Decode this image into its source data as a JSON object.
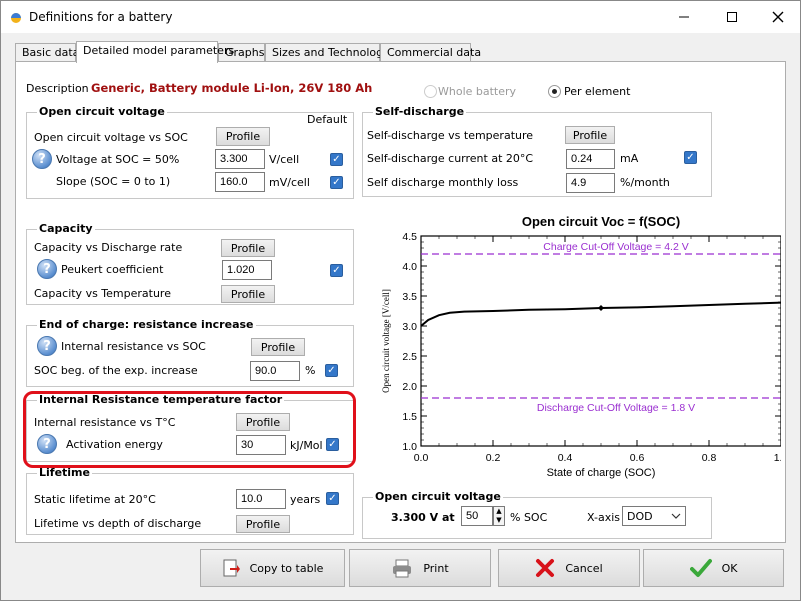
{
  "window": {
    "title": "Definitions for a battery",
    "minimize": "—",
    "maximize": "☐",
    "close": "✕"
  },
  "tabs": [
    {
      "label": "Basic data"
    },
    {
      "label": "Detailed model parameters"
    },
    {
      "label": "Graphs"
    },
    {
      "label": "Sizes and Technology"
    },
    {
      "label": "Commercial data"
    }
  ],
  "description": {
    "label": "Description",
    "value": "Generic,  Battery module Li-Ion, 26V 180 Ah"
  },
  "scope": {
    "whole_battery": "Whole battery",
    "per_element": "Per element",
    "selected": "per_element"
  },
  "ocv": {
    "title": "Open circuit voltage",
    "default_label": "Default",
    "vs_soc_label": "Open circuit voltage vs SOC",
    "profile": "Profile",
    "v_soc50_label": "Voltage at SOC = 50%",
    "v_soc50_value": "3.300",
    "v_soc50_unit": "V/cell",
    "slope_label": "Slope (SOC = 0 to 1)",
    "slope_value": "160.0",
    "slope_unit": "mV/cell"
  },
  "capacity": {
    "title": "Capacity",
    "vs_rate_label": "Capacity vs Discharge rate",
    "profile": "Profile",
    "peukert_label": "Peukert coefficient",
    "peukert_value": "1.020",
    "vs_temp_label": "Capacity vs Temperature"
  },
  "eoc": {
    "title": "End of charge: resistance increase",
    "ir_vs_soc_label": "Internal resistance vs SOC",
    "profile": "Profile",
    "soc_beg_label": "SOC beg. of the exp. increase",
    "soc_beg_value": "90.0",
    "soc_beg_unit": "%"
  },
  "irt": {
    "title": "Internal Resistance temperature factor",
    "ir_vs_t_label": "Internal resistance vs T°C",
    "profile": "Profile",
    "activation_label": "Activation energy",
    "activation_value": "30",
    "activation_unit": "kJ/Mol"
  },
  "lifetime": {
    "title": "Lifetime",
    "static_label": "Static lifetime at 20°C",
    "static_value": "10.0",
    "static_unit": "years",
    "vs_dod_label": "Lifetime vs depth of discharge",
    "profile": "Profile"
  },
  "selfdischarge": {
    "title": "Self-discharge",
    "vs_temp_label": "Self-discharge vs temperature",
    "profile": "Profile",
    "current_label": "Self-discharge current at 20°C",
    "current_value": "0.24",
    "current_unit": "mA",
    "monthly_label": "Self discharge monthly loss",
    "monthly_value": "4.9",
    "monthly_unit": "%/month"
  },
  "ocv_bottom": {
    "title": "Open circuit voltage",
    "voltage_text": "3.300 V at",
    "soc_value": "50",
    "soc_unit": "% SOC",
    "xaxis_label": "X-axis",
    "xaxis_value": "DOD"
  },
  "buttons": {
    "copy": "Copy to table",
    "print": "Print",
    "cancel": "Cancel",
    "ok": "OK"
  },
  "chart_data": {
    "type": "line",
    "title": "Open circuit Voc = f(SOC)",
    "xlabel": "State of charge (SOC)",
    "ylabel": "Open circuit voltage  [V/cell]",
    "xlim": [
      0.0,
      1.0
    ],
    "ylim": [
      1.0,
      4.5
    ],
    "xticks": [
      "0.0",
      "0.2",
      "0.4",
      "0.6",
      "0.8",
      "1.0"
    ],
    "yticks": [
      "1.0",
      "1.5",
      "2.0",
      "2.5",
      "3.0",
      "3.5",
      "4.0",
      "4.5"
    ],
    "series": [
      {
        "x": [
          0.0,
          0.02,
          0.05,
          0.08,
          0.12,
          0.2,
          0.3,
          0.4,
          0.5,
          0.6,
          0.7,
          0.8,
          0.9,
          1.0
        ],
        "y": [
          3.0,
          3.1,
          3.18,
          3.22,
          3.24,
          3.25,
          3.27,
          3.28,
          3.3,
          3.31,
          3.33,
          3.35,
          3.37,
          3.39
        ]
      }
    ],
    "marker": {
      "x": 0.5,
      "y": 3.3
    },
    "annotations": [
      {
        "text": "Charge Cut-Off Voltage = 4.2 V",
        "y": 4.2
      },
      {
        "text": "Discharge Cut-Off Voltage = 1.8 V",
        "y": 1.8
      }
    ],
    "colors": {
      "curve": "#000000",
      "cutoff": "#9a2fd0"
    }
  }
}
